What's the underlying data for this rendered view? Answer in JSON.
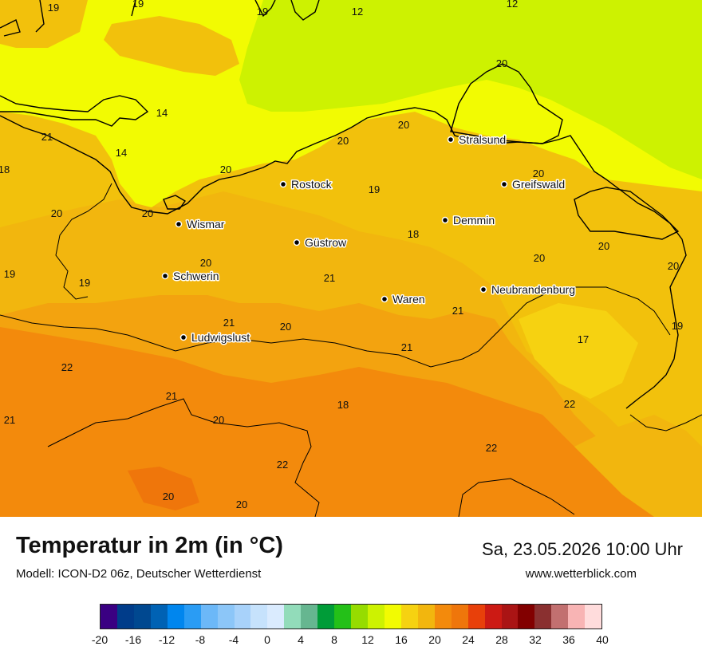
{
  "map": {
    "colors": {
      "t12": "#cdf201",
      "t14": "#f2fb02",
      "t18": "#f6d211",
      "t19": "#f2c10c",
      "t20": "#f2b60e",
      "t21": "#f3a30f",
      "t22": "#f38a0c",
      "t23": "#ef760b",
      "coast": "#000000"
    },
    "cities": [
      {
        "name": "Stralsund"
      },
      {
        "name": "Rostock"
      },
      {
        "name": "Greifswald"
      },
      {
        "name": "Wismar"
      },
      {
        "name": "Demmin"
      },
      {
        "name": "Güstrow"
      },
      {
        "name": "Schwerin"
      },
      {
        "name": "Neubrandenburg"
      },
      {
        "name": "Waren"
      },
      {
        "name": "Ludwigslust"
      }
    ],
    "value_labels": [
      "19",
      "19",
      "19",
      "12",
      "12",
      "20",
      "14",
      "14",
      "21",
      "20",
      "20",
      "18",
      "20",
      "20",
      "19",
      "20",
      "20",
      "20",
      "20",
      "18",
      "19",
      "20",
      "19",
      "21",
      "20",
      "21",
      "19",
      "20",
      "17",
      "21",
      "21",
      "22",
      "21",
      "20",
      "18",
      "22",
      "21",
      "22",
      "22",
      "20",
      "20"
    ]
  },
  "footer": {
    "title": "Temperatur in 2m (in °C)",
    "subtitle": "Modell: ICON-D2 06z, Deutscher Wetterdienst",
    "datetime": "Sa, 23.05.2026 10:00 Uhr",
    "website": "www.wetterblick.com"
  },
  "legend": {
    "colors": [
      "#3a0082",
      "#003c8a",
      "#004890",
      "#0062b4",
      "#0086ee",
      "#2a9cf4",
      "#6cb8f8",
      "#8cc6f8",
      "#a8d2fa",
      "#c6e2fc",
      "#daebfe",
      "#92dcba",
      "#66b690",
      "#009c38",
      "#24c018",
      "#96dc00",
      "#cdf201",
      "#f2fb02",
      "#f6d211",
      "#f2b60e",
      "#f38a0c",
      "#ef760b",
      "#e8400a",
      "#cc1a14",
      "#aa1414",
      "#820000",
      "#8a3030",
      "#c27070",
      "#f8b4b4",
      "#ffdcdc"
    ],
    "ticks": [
      "-20",
      "-16",
      "-12",
      "-8",
      "-4",
      "0",
      "4",
      "8",
      "12",
      "16",
      "20",
      "24",
      "28",
      "32",
      "36",
      "40"
    ]
  }
}
